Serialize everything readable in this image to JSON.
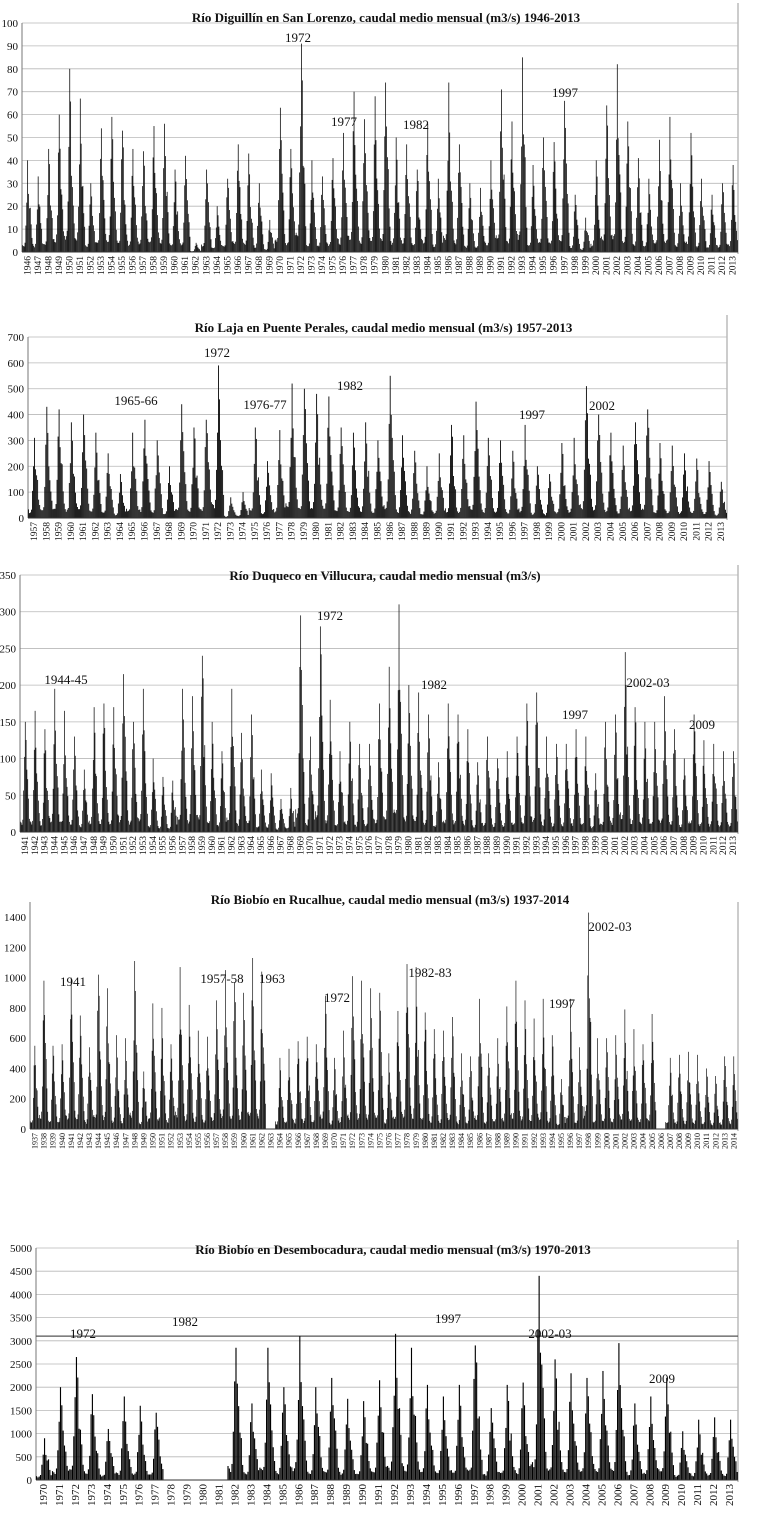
{
  "chart_data": [
    {
      "type": "bar",
      "title": "Río Diguillín en San Lorenzo, caudal medio mensual (m3/s) 1946-2013",
      "xlabel": "",
      "ylabel": "",
      "ylim": [
        0,
        100
      ],
      "yticks": [
        0,
        10,
        20,
        30,
        40,
        50,
        60,
        70,
        80,
        90,
        100
      ],
      "grid": true,
      "categories": [
        "1946",
        "1947",
        "1948",
        "1949",
        "1950",
        "1951",
        "1952",
        "1953",
        "1954",
        "1955",
        "1956",
        "1957",
        "1958",
        "1959",
        "1960",
        "1961",
        "1962",
        "1963",
        "1964",
        "1965",
        "1966",
        "1967",
        "1968",
        "1969",
        "1970",
        "1971",
        "1972",
        "1973",
        "1974",
        "1975",
        "1976",
        "1977",
        "1978",
        "1979",
        "1980",
        "1981",
        "1982",
        "1983",
        "1984",
        "1985",
        "1986",
        "1987",
        "1988",
        "1989",
        "1990",
        "1991",
        "1992",
        "1993",
        "1994",
        "1995",
        "1996",
        "1997",
        "1998",
        "1999",
        "2000",
        "2001",
        "2002",
        "2003",
        "2004",
        "2005",
        "2006",
        "2007",
        "2008",
        "2009",
        "2010",
        "2011",
        "2012",
        "2013"
      ],
      "peaks": [
        40,
        33,
        45,
        60,
        80,
        67,
        30,
        54,
        59,
        53,
        45,
        44,
        55,
        56,
        36,
        42,
        4,
        36,
        20,
        32,
        47,
        43,
        30,
        14,
        63,
        45,
        91,
        40,
        33,
        41,
        52,
        70,
        58,
        68,
        74,
        50,
        47,
        36,
        56,
        32,
        74,
        47,
        30,
        28,
        40,
        71,
        57,
        85,
        38,
        50,
        48,
        66,
        25,
        15,
        40,
        64,
        82,
        57,
        41,
        32,
        49,
        59,
        30,
        52,
        32,
        25,
        30,
        38
      ],
      "annotations": [
        "1972",
        "1977",
        "1982",
        "1997"
      ]
    },
    {
      "type": "bar",
      "title": "Río Laja en Puente Perales, caudal medio mensual (m3/s) 1957-2013",
      "xlabel": "",
      "ylabel": "",
      "ylim": [
        0,
        700
      ],
      "yticks": [
        0,
        100,
        200,
        300,
        400,
        500,
        600,
        700
      ],
      "grid": true,
      "categories": [
        "1957",
        "1958",
        "1959",
        "1960",
        "1961",
        "1962",
        "1963",
        "1964",
        "1965",
        "1966",
        "1967",
        "1968",
        "1969",
        "1970",
        "1971",
        "1972",
        "1973",
        "1974",
        "1975",
        "1976",
        "1977",
        "1978",
        "1979",
        "1980",
        "1981",
        "1982",
        "1983",
        "1984",
        "1985",
        "1986",
        "1987",
        "1988",
        "1989",
        "1990",
        "1991",
        "1992",
        "1993",
        "1994",
        "1995",
        "1996",
        "1997",
        "1998",
        "1999",
        "2000",
        "2001",
        "2002",
        "2003",
        "2004",
        "2005",
        "2006",
        "2007",
        "2008",
        "2009",
        "2010",
        "2011",
        "2012",
        "2013"
      ],
      "peaks": [
        310,
        430,
        420,
        370,
        400,
        330,
        250,
        170,
        330,
        380,
        300,
        200,
        440,
        350,
        380,
        590,
        80,
        100,
        350,
        220,
        340,
        520,
        500,
        480,
        470,
        350,
        330,
        370,
        300,
        550,
        320,
        260,
        200,
        250,
        360,
        320,
        450,
        310,
        300,
        260,
        360,
        200,
        170,
        290,
        310,
        510,
        400,
        330,
        280,
        370,
        420,
        290,
        280,
        250,
        230,
        220,
        140
      ],
      "annotations": [
        "1965-66",
        "1972",
        "1976-77",
        "1982",
        "1997",
        "2002"
      ]
    },
    {
      "type": "bar",
      "title": "Río Duqueco en Villucura, caudal medio mensual (m3/s)",
      "xlabel": "",
      "ylabel": "",
      "ylim": [
        0,
        350
      ],
      "yticks": [
        0,
        50,
        100,
        150,
        200,
        250,
        300,
        350
      ],
      "grid": true,
      "categories": [
        "1941",
        "1942",
        "1943",
        "1944",
        "1945",
        "1946",
        "1947",
        "1948",
        "1949",
        "1950",
        "1951",
        "1952",
        "1953",
        "1954",
        "1955",
        "1956",
        "1957",
        "1958",
        "1959",
        "1960",
        "1961",
        "1962",
        "1963",
        "1964",
        "1965",
        "1966",
        "1967",
        "1968",
        "1969",
        "1970",
        "1971",
        "1972",
        "1973",
        "1974",
        "1975",
        "1976",
        "1977",
        "1978",
        "1979",
        "1980",
        "1981",
        "1982",
        "1983",
        "1984",
        "1985",
        "1986",
        "1987",
        "1988",
        "1989",
        "1990",
        "1991",
        "1992",
        "1993",
        "1994",
        "1995",
        "1996",
        "1997",
        "1998",
        "1999",
        "2000",
        "2001",
        "2002",
        "2003",
        "2004",
        "2005",
        "2006",
        "2007",
        "2008",
        "2009",
        "2010",
        "2011",
        "2012",
        "2013"
      ],
      "peaks": [
        150,
        165,
        140,
        195,
        165,
        130,
        85,
        170,
        175,
        170,
        215,
        150,
        195,
        100,
        75,
        70,
        195,
        185,
        240,
        150,
        110,
        195,
        135,
        160,
        85,
        80,
        45,
        60,
        295,
        130,
        280,
        180,
        110,
        150,
        120,
        120,
        175,
        225,
        310,
        200,
        190,
        160,
        95,
        175,
        160,
        140,
        95,
        130,
        100,
        110,
        130,
        175,
        190,
        130,
        120,
        120,
        140,
        130,
        80,
        150,
        160,
        245,
        170,
        150,
        150,
        185,
        140,
        100,
        160,
        125,
        120,
        110,
        110
      ],
      "annotations": [
        "1944-45",
        "1972",
        "1982",
        "1997",
        "2002-03",
        "2009"
      ]
    },
    {
      "type": "bar",
      "title": "Río Biobío en Rucalhue, caudal medio mensual (m3/s) 1937-2014",
      "xlabel": "",
      "ylabel": "",
      "ylim": [
        0,
        1500
      ],
      "yticks": [
        0,
        200,
        400,
        600,
        800,
        1000,
        1200,
        1400
      ],
      "grid": false,
      "categories": [
        "1937",
        "1938",
        "1939",
        "1940",
        "1941",
        "1942",
        "1943",
        "1944",
        "1945",
        "1946",
        "1947",
        "1948",
        "1949",
        "1950",
        "1951",
        "1952",
        "1953",
        "1954",
        "1955",
        "1956",
        "1957",
        "1958",
        "1959",
        "1960",
        "1961",
        "1962",
        "1963",
        "1964",
        "1965",
        "1966",
        "1967",
        "1968",
        "1969",
        "1970",
        "1971",
        "1972",
        "1973",
        "1974",
        "1975",
        "1976",
        "1977",
        "1978",
        "1979",
        "1980",
        "1981",
        "1982",
        "1983",
        "1984",
        "1985",
        "1986",
        "1987",
        "1988",
        "1989",
        "1990",
        "1991",
        "1992",
        "1993",
        "1994",
        "1995",
        "1996",
        "1997",
        "1998",
        "1999",
        "2000",
        "2001",
        "2002",
        "2003",
        "2004",
        "2005",
        "2006",
        "2007",
        "2008",
        "2009",
        "2010",
        "2011",
        "2012",
        "2013",
        "2014"
      ],
      "peaks": [
        550,
        980,
        550,
        560,
        1000,
        750,
        540,
        1020,
        930,
        620,
        600,
        1110,
        380,
        830,
        800,
        560,
        1070,
        820,
        650,
        610,
        850,
        1050,
        970,
        900,
        1130,
        1040,
        0,
        470,
        530,
        580,
        610,
        560,
        880,
        470,
        650,
        1010,
        980,
        930,
        900,
        500,
        780,
        1090,
        1070,
        770,
        660,
        650,
        740,
        500,
        480,
        860,
        500,
        600,
        810,
        980,
        850,
        730,
        860,
        620,
        330,
        860,
        540,
        1430,
        600,
        600,
        620,
        790,
        660,
        560,
        760,
        0,
        470,
        490,
        510,
        490,
        400,
        350,
        480,
        480
      ],
      "annotations": [
        "1941",
        "1957-58",
        "1963",
        "1972",
        "1982-83",
        "1997",
        "2002-03"
      ]
    },
    {
      "type": "bar",
      "title": "Río Biobío en Desembocadura, caudal medio mensual (m3/s) 1970-2013",
      "xlabel": "",
      "ylabel": "",
      "ylim": [
        0,
        5000
      ],
      "yticks": [
        0,
        500,
        1000,
        1500,
        2000,
        2500,
        3000,
        3500,
        4000,
        4500,
        5000
      ],
      "grid": true,
      "reference_line": 3100,
      "categories": [
        "1970",
        "1971",
        "1972",
        "1973",
        "1974",
        "1975",
        "1976",
        "1977",
        "1978",
        "1979",
        "1980",
        "1981",
        "1982",
        "1983",
        "1984",
        "1985",
        "1986",
        "1987",
        "1988",
        "1989",
        "1990",
        "1991",
        "1992",
        "1993",
        "1994",
        "1995",
        "1996",
        "1997",
        "1998",
        "1999",
        "2000",
        "2001",
        "2002",
        "2003",
        "2004",
        "2005",
        "2006",
        "2007",
        "2008",
        "2009",
        "2010",
        "2011",
        "2012",
        "2013"
      ],
      "peaks": [
        900,
        2000,
        2650,
        1850,
        1100,
        1800,
        1600,
        1450,
        0,
        0,
        0,
        0,
        2850,
        1650,
        2850,
        2000,
        3100,
        2000,
        2200,
        1750,
        1700,
        2150,
        3150,
        2850,
        2050,
        1800,
        2050,
        2900,
        1550,
        2050,
        2100,
        4400,
        2600,
        2300,
        2200,
        2350,
        2950,
        1650,
        1800,
        2200,
        1050,
        1300,
        1350,
        1300
      ],
      "annotations": [
        "1972",
        "1982",
        "1997",
        "2002-03",
        "2009"
      ]
    }
  ]
}
